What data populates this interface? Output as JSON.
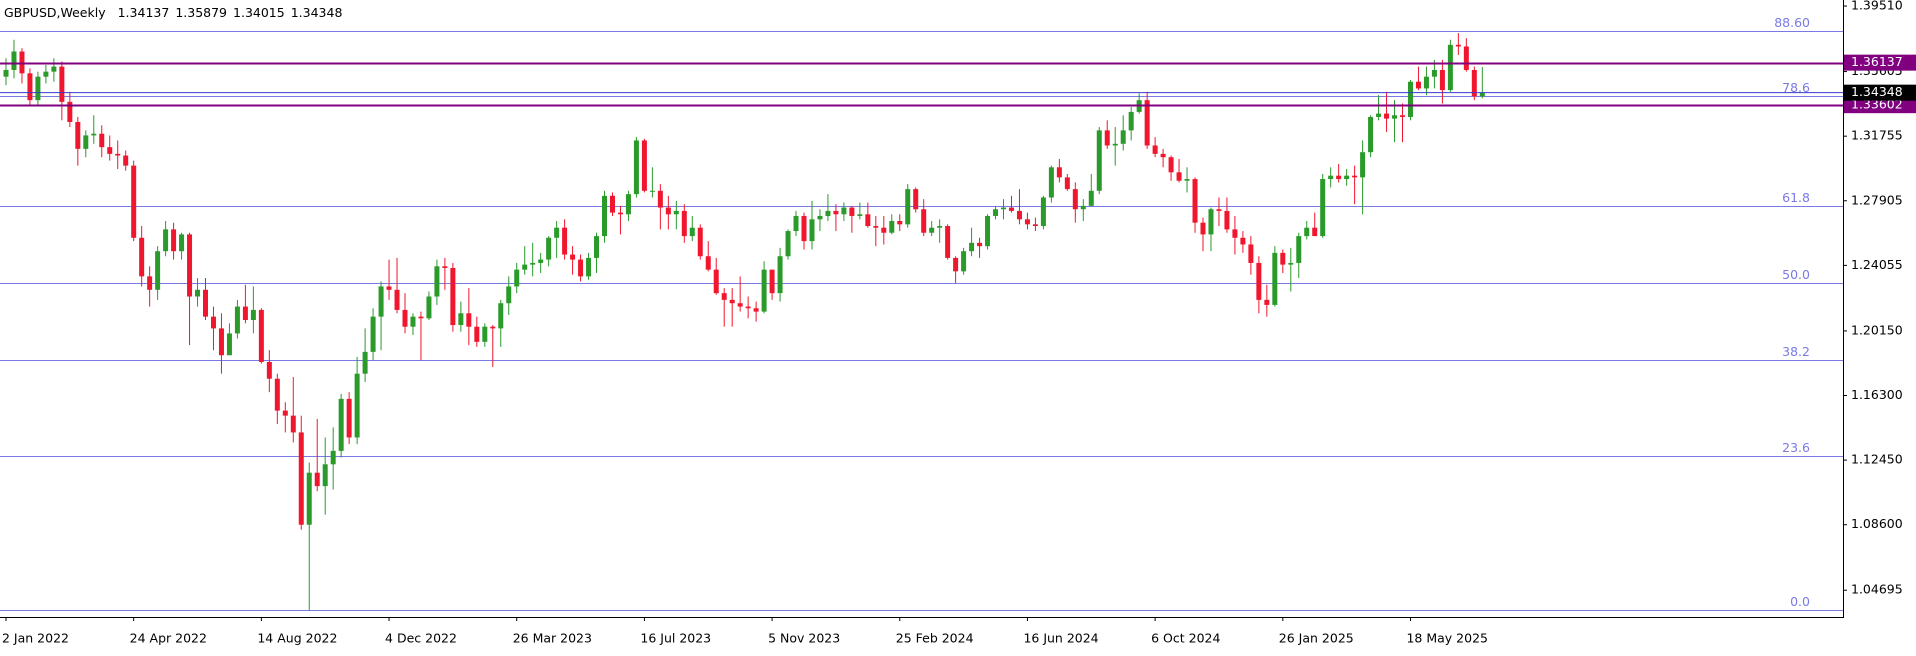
{
  "chart_data": {
    "type": "candlestick",
    "symbol": "GBPUSD,Weekly",
    "categories": [
      "2 Jan 2022",
      null,
      null,
      null,
      null,
      null,
      null,
      null,
      null,
      null,
      null,
      null,
      null,
      null,
      null,
      null,
      "24 Apr 2022",
      null,
      null,
      null,
      null,
      null,
      null,
      null,
      null,
      null,
      null,
      null,
      null,
      null,
      null,
      null,
      "14 Aug 2022",
      null,
      null,
      null,
      null,
      null,
      null,
      null,
      null,
      null,
      null,
      null,
      null,
      null,
      null,
      null,
      "4 Dec 2022",
      null,
      null,
      null,
      null,
      null,
      null,
      null,
      null,
      null,
      null,
      null,
      null,
      null,
      null,
      null,
      "26 Mar 2023",
      null,
      null,
      null,
      null,
      null,
      null,
      null,
      null,
      null,
      null,
      null,
      null,
      null,
      null,
      null,
      "16 Jul 2023",
      null,
      null,
      null,
      null,
      null,
      null,
      null,
      null,
      null,
      null,
      null,
      null,
      null,
      null,
      null,
      "5 Nov 2023",
      null,
      null,
      null,
      null,
      null,
      null,
      null,
      null,
      null,
      null,
      null,
      null,
      null,
      null,
      null,
      "25 Feb 2024",
      null,
      null,
      null,
      null,
      null,
      null,
      null,
      null,
      null,
      null,
      null,
      null,
      null,
      null,
      null,
      "16 Jun 2024",
      null,
      null,
      null,
      null,
      null,
      null,
      null,
      null,
      null,
      null,
      null,
      null,
      null,
      null,
      null,
      "6 Oct 2024",
      null,
      null,
      null,
      null,
      null,
      null,
      null,
      null,
      null,
      null,
      null,
      null,
      null,
      null,
      null,
      "26 Jan 2025",
      null,
      null,
      null,
      null,
      null,
      null,
      null,
      null,
      null,
      null,
      null,
      null,
      null,
      null,
      null,
      "18 May 2025",
      null,
      null,
      null,
      null,
      null,
      null,
      null,
      null,
      null
    ],
    "ohlc": [
      [
        1.353,
        1.364,
        1.348,
        1.357
      ],
      [
        1.357,
        1.375,
        1.352,
        1.368
      ],
      [
        1.368,
        1.37,
        1.349,
        1.355
      ],
      [
        1.355,
        1.358,
        1.336,
        1.339
      ],
      [
        1.339,
        1.356,
        1.336,
        1.353
      ],
      [
        1.353,
        1.36,
        1.349,
        1.356
      ],
      [
        1.356,
        1.364,
        1.35,
        1.359
      ],
      [
        1.359,
        1.362,
        1.327,
        1.338
      ],
      [
        1.338,
        1.344,
        1.323,
        1.326
      ],
      [
        1.326,
        1.329,
        1.3,
        1.31
      ],
      [
        1.31,
        1.321,
        1.305,
        1.318
      ],
      [
        1.318,
        1.33,
        1.313,
        1.319
      ],
      [
        1.319,
        1.324,
        1.305,
        1.311
      ],
      [
        1.311,
        1.318,
        1.303,
        1.307
      ],
      [
        1.307,
        1.315,
        1.298,
        1.306
      ],
      [
        1.306,
        1.309,
        1.297,
        1.3
      ],
      [
        1.3,
        1.303,
        1.255,
        1.257
      ],
      [
        1.257,
        1.264,
        1.228,
        1.234
      ],
      [
        1.234,
        1.24,
        1.216,
        1.226
      ],
      [
        1.226,
        1.252,
        1.22,
        1.249
      ],
      [
        1.249,
        1.267,
        1.246,
        1.262
      ],
      [
        1.262,
        1.266,
        1.244,
        1.249
      ],
      [
        1.249,
        1.26,
        1.244,
        1.259
      ],
      [
        1.259,
        1.26,
        1.193,
        1.222
      ],
      [
        1.222,
        1.233,
        1.216,
        1.226
      ],
      [
        1.226,
        1.233,
        1.208,
        1.21
      ],
      [
        1.21,
        1.216,
        1.19,
        1.203
      ],
      [
        1.203,
        1.212,
        1.176,
        1.187
      ],
      [
        1.187,
        1.206,
        1.188,
        1.2
      ],
      [
        1.2,
        1.22,
        1.197,
        1.216
      ],
      [
        1.216,
        1.229,
        1.206,
        1.208
      ],
      [
        1.208,
        1.228,
        1.2,
        1.214
      ],
      [
        1.214,
        1.215,
        1.182,
        1.183
      ],
      [
        1.183,
        1.19,
        1.165,
        1.173
      ],
      [
        1.173,
        1.176,
        1.146,
        1.154
      ],
      [
        1.154,
        1.159,
        1.141,
        1.151
      ],
      [
        1.151,
        1.174,
        1.135,
        1.141
      ],
      [
        1.141,
        1.151,
        1.083,
        1.086
      ],
      [
        1.086,
        1.123,
        1.035,
        1.117
      ],
      [
        1.117,
        1.149,
        1.106,
        1.109
      ],
      [
        1.109,
        1.138,
        1.092,
        1.122
      ],
      [
        1.122,
        1.144,
        1.107,
        1.13
      ],
      [
        1.13,
        1.164,
        1.126,
        1.161
      ],
      [
        1.161,
        1.165,
        1.134,
        1.138
      ],
      [
        1.138,
        1.186,
        1.134,
        1.176
      ],
      [
        1.176,
        1.203,
        1.171,
        1.189
      ],
      [
        1.189,
        1.215,
        1.184,
        1.21
      ],
      [
        1.21,
        1.231,
        1.19,
        1.228
      ],
      [
        1.228,
        1.244,
        1.22,
        1.226
      ],
      [
        1.226,
        1.245,
        1.212,
        1.214
      ],
      [
        1.214,
        1.224,
        1.2,
        1.204
      ],
      [
        1.204,
        1.212,
        1.199,
        1.21
      ],
      [
        1.21,
        1.213,
        1.184,
        1.209
      ],
      [
        1.209,
        1.225,
        1.208,
        1.222
      ],
      [
        1.222,
        1.244,
        1.217,
        1.24
      ],
      [
        1.24,
        1.245,
        1.226,
        1.239
      ],
      [
        1.239,
        1.242,
        1.201,
        1.205
      ],
      [
        1.205,
        1.219,
        1.201,
        1.212
      ],
      [
        1.212,
        1.227,
        1.193,
        1.204
      ],
      [
        1.204,
        1.21,
        1.192,
        1.195
      ],
      [
        1.195,
        1.206,
        1.192,
        1.204
      ],
      [
        1.204,
        1.205,
        1.18,
        1.203
      ],
      [
        1.203,
        1.22,
        1.192,
        1.218
      ],
      [
        1.218,
        1.234,
        1.211,
        1.228
      ],
      [
        1.228,
        1.242,
        1.224,
        1.238
      ],
      [
        1.238,
        1.252,
        1.235,
        1.241
      ],
      [
        1.241,
        1.254,
        1.234,
        1.242
      ],
      [
        1.242,
        1.248,
        1.236,
        1.244
      ],
      [
        1.244,
        1.258,
        1.24,
        1.257
      ],
      [
        1.257,
        1.267,
        1.245,
        1.263
      ],
      [
        1.263,
        1.268,
        1.244,
        1.247
      ],
      [
        1.247,
        1.252,
        1.235,
        1.244
      ],
      [
        1.244,
        1.247,
        1.231,
        1.234
      ],
      [
        1.234,
        1.248,
        1.232,
        1.245
      ],
      [
        1.245,
        1.26,
        1.236,
        1.258
      ],
      [
        1.258,
        1.285,
        1.254,
        1.282
      ],
      [
        1.282,
        1.284,
        1.27,
        1.272
      ],
      [
        1.272,
        1.276,
        1.259,
        1.271
      ],
      [
        1.271,
        1.285,
        1.267,
        1.283
      ],
      [
        1.283,
        1.317,
        1.281,
        1.315
      ],
      [
        1.315,
        1.316,
        1.284,
        1.285
      ],
      [
        1.285,
        1.299,
        1.281,
        1.285
      ],
      [
        1.285,
        1.289,
        1.262,
        1.275
      ],
      [
        1.275,
        1.282,
        1.262,
        1.271
      ],
      [
        1.271,
        1.279,
        1.262,
        1.273
      ],
      [
        1.273,
        1.277,
        1.254,
        1.258
      ],
      [
        1.258,
        1.27,
        1.255,
        1.263
      ],
      [
        1.263,
        1.265,
        1.244,
        1.246
      ],
      [
        1.246,
        1.255,
        1.237,
        1.238
      ],
      [
        1.238,
        1.245,
        1.223,
        1.224
      ],
      [
        1.224,
        1.227,
        1.204,
        1.22
      ],
      [
        1.22,
        1.227,
        1.204,
        1.218
      ],
      [
        1.218,
        1.234,
        1.213,
        1.216
      ],
      [
        1.216,
        1.222,
        1.209,
        1.215
      ],
      [
        1.215,
        1.219,
        1.207,
        1.213
      ],
      [
        1.213,
        1.243,
        1.212,
        1.238
      ],
      [
        1.238,
        1.238,
        1.22,
        1.224
      ],
      [
        1.224,
        1.251,
        1.219,
        1.246
      ],
      [
        1.246,
        1.262,
        1.244,
        1.261
      ],
      [
        1.261,
        1.273,
        1.258,
        1.27
      ],
      [
        1.27,
        1.272,
        1.25,
        1.255
      ],
      [
        1.255,
        1.279,
        1.25,
        1.268
      ],
      [
        1.268,
        1.274,
        1.261,
        1.27
      ],
      [
        1.27,
        1.283,
        1.267,
        1.273
      ],
      [
        1.273,
        1.277,
        1.261,
        1.271
      ],
      [
        1.271,
        1.278,
        1.267,
        1.275
      ],
      [
        1.275,
        1.276,
        1.26,
        1.27
      ],
      [
        1.27,
        1.278,
        1.268,
        1.271
      ],
      [
        1.271,
        1.278,
        1.263,
        1.264
      ],
      [
        1.264,
        1.27,
        1.252,
        1.263
      ],
      [
        1.263,
        1.27,
        1.253,
        1.26
      ],
      [
        1.26,
        1.271,
        1.259,
        1.267
      ],
      [
        1.267,
        1.271,
        1.261,
        1.265
      ],
      [
        1.265,
        1.289,
        1.263,
        1.286
      ],
      [
        1.286,
        1.287,
        1.272,
        1.274
      ],
      [
        1.274,
        1.28,
        1.258,
        1.26
      ],
      [
        1.26,
        1.267,
        1.258,
        1.263
      ],
      [
        1.263,
        1.268,
        1.254,
        1.264
      ],
      [
        1.264,
        1.265,
        1.244,
        1.245
      ],
      [
        1.245,
        1.246,
        1.23,
        1.237
      ],
      [
        1.237,
        1.251,
        1.235,
        1.249
      ],
      [
        1.249,
        1.263,
        1.246,
        1.254
      ],
      [
        1.254,
        1.257,
        1.245,
        1.252
      ],
      [
        1.252,
        1.271,
        1.25,
        1.27
      ],
      [
        1.27,
        1.276,
        1.268,
        1.274
      ],
      [
        1.274,
        1.28,
        1.268,
        1.275
      ],
      [
        1.275,
        1.282,
        1.272,
        1.273
      ],
      [
        1.273,
        1.286,
        1.265,
        1.268
      ],
      [
        1.268,
        1.272,
        1.262,
        1.265
      ],
      [
        1.265,
        1.269,
        1.261,
        1.264
      ],
      [
        1.264,
        1.282,
        1.262,
        1.281
      ],
      [
        1.281,
        1.3,
        1.278,
        1.299
      ],
      [
        1.299,
        1.304,
        1.29,
        1.293
      ],
      [
        1.293,
        1.295,
        1.285,
        1.286
      ],
      [
        1.286,
        1.29,
        1.266,
        1.274
      ],
      [
        1.274,
        1.28,
        1.267,
        1.276
      ],
      [
        1.276,
        1.295,
        1.276,
        1.285
      ],
      [
        1.285,
        1.323,
        1.283,
        1.321
      ],
      [
        1.321,
        1.327,
        1.31,
        1.312
      ],
      [
        1.312,
        1.323,
        1.3,
        1.313
      ],
      [
        1.313,
        1.33,
        1.309,
        1.321
      ],
      [
        1.321,
        1.335,
        1.315,
        1.332
      ],
      [
        1.332,
        1.343,
        1.331,
        1.339
      ],
      [
        1.339,
        1.344,
        1.31,
        1.312
      ],
      [
        1.312,
        1.317,
        1.305,
        1.307
      ],
      [
        1.307,
        1.31,
        1.299,
        1.305
      ],
      [
        1.305,
        1.306,
        1.291,
        1.296
      ],
      [
        1.296,
        1.304,
        1.29,
        1.291
      ],
      [
        1.291,
        1.299,
        1.284,
        1.292
      ],
      [
        1.292,
        1.293,
        1.26,
        1.266
      ],
      [
        1.266,
        1.269,
        1.249,
        1.259
      ],
      [
        1.259,
        1.275,
        1.249,
        1.274
      ],
      [
        1.274,
        1.281,
        1.264,
        1.273
      ],
      [
        1.273,
        1.281,
        1.26,
        1.262
      ],
      [
        1.262,
        1.27,
        1.247,
        1.257
      ],
      [
        1.257,
        1.261,
        1.248,
        1.253
      ],
      [
        1.253,
        1.258,
        1.235,
        1.242
      ],
      [
        1.242,
        1.246,
        1.212,
        1.22
      ],
      [
        1.22,
        1.229,
        1.21,
        1.217
      ],
      [
        1.217,
        1.252,
        1.216,
        1.248
      ],
      [
        1.248,
        1.25,
        1.236,
        1.241
      ],
      [
        1.241,
        1.251,
        1.225,
        1.242
      ],
      [
        1.242,
        1.26,
        1.233,
        1.258
      ],
      [
        1.258,
        1.267,
        1.256,
        1.263
      ],
      [
        1.263,
        1.272,
        1.258,
        1.258
      ],
      [
        1.258,
        1.295,
        1.257,
        1.292
      ],
      [
        1.292,
        1.299,
        1.287,
        1.294
      ],
      [
        1.294,
        1.301,
        1.29,
        1.292
      ],
      [
        1.292,
        1.298,
        1.288,
        1.294
      ],
      [
        1.294,
        1.3,
        1.277,
        1.293
      ],
      [
        1.293,
        1.315,
        1.271,
        1.308
      ],
      [
        1.308,
        1.33,
        1.305,
        1.329
      ],
      [
        1.329,
        1.342,
        1.327,
        1.331
      ],
      [
        1.331,
        1.344,
        1.32,
        1.328
      ],
      [
        1.328,
        1.339,
        1.314,
        1.33
      ],
      [
        1.33,
        1.337,
        1.314,
        1.329
      ],
      [
        1.329,
        1.351,
        1.327,
        1.35
      ],
      [
        1.35,
        1.359,
        1.345,
        1.346
      ],
      [
        1.346,
        1.359,
        1.342,
        1.353
      ],
      [
        1.353,
        1.363,
        1.346,
        1.357
      ],
      [
        1.357,
        1.363,
        1.337,
        1.345
      ],
      [
        1.345,
        1.375,
        1.344,
        1.372
      ],
      [
        1.372,
        1.379,
        1.366,
        1.371
      ],
      [
        1.371,
        1.376,
        1.356,
        1.357
      ],
      [
        1.357,
        1.359,
        1.339,
        1.3414
      ],
      [
        1.34137,
        1.35879,
        1.34015,
        1.34348
      ]
    ],
    "up_color": "#2a9a2a",
    "down_color": "#f0162e",
    "ylim": [
      1.031,
      1.3987
    ],
    "yticks": [
      1.04695,
      {
        "value": 1.086,
        "label": "1.08600"
      },
      {
        "value": 1.1245,
        "label": "1.12450"
      },
      {
        "value": 1.163,
        "label": "1.16300"
      },
      {
        "value": 1.2015,
        "label": "1.20150"
      },
      1.24055,
      1.27905,
      1.31755,
      1.35605,
      {
        "value": 1.3951,
        "label": "1.39510"
      }
    ],
    "hlines": [
      {
        "value": 1.36137,
        "color": "#800080"
      },
      {
        "value": 1.33602,
        "color": "#800080"
      }
    ],
    "fib_range": [
      1.035,
      1.4249
    ],
    "fib_color": "#7a7ae6",
    "fib_levels": [
      {
        "value": 0,
        "label": "0.0"
      },
      23.6,
      38.2,
      {
        "value": 50,
        "label": "50.0"
      },
      61.8,
      78.6,
      {
        "value": 88.6,
        "label": "88.60"
      }
    ],
    "current_color": "#000000"
  }
}
